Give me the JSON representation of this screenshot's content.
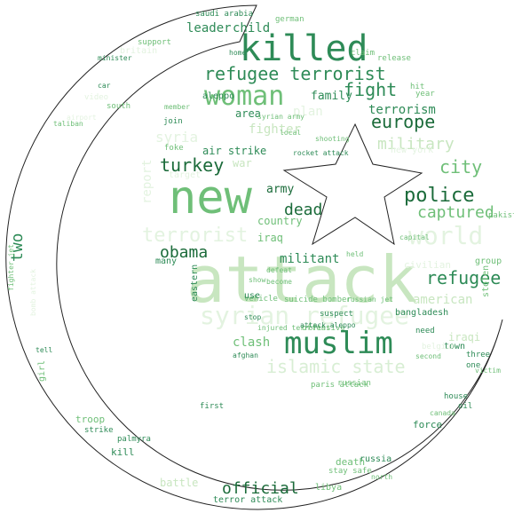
{
  "words": [
    {
      "text": "attack",
      "color": "#c8e6c0"
    },
    {
      "text": "new",
      "color": "#6fbf78"
    },
    {
      "text": "killed",
      "color": "#2e8b57"
    },
    {
      "text": "woman",
      "color": "#6fbf78"
    },
    {
      "text": "muslim",
      "color": "#2e8b57"
    },
    {
      "text": "syrian refugee",
      "color": "#e3f3e0"
    },
    {
      "text": "refugee terrorist",
      "color": "#2e8b57"
    },
    {
      "text": "world",
      "color": "#e3f3e0"
    },
    {
      "text": "police",
      "color": "#1b6b3a"
    },
    {
      "text": "europe",
      "color": "#1b6b3a"
    },
    {
      "text": "turkey",
      "color": "#1b6b3a"
    },
    {
      "text": "city",
      "color": "#6fbf78"
    },
    {
      "text": "terrorist",
      "color": "#e3f3e0"
    },
    {
      "text": "islamic state",
      "color": "#d8eed4"
    },
    {
      "text": "obama",
      "color": "#1b6b3a"
    },
    {
      "text": "military",
      "color": "#c8e6c0"
    },
    {
      "text": "captured",
      "color": "#6fbf78"
    },
    {
      "text": "refugee",
      "color": "#2e8b57"
    },
    {
      "text": "fight",
      "color": "#2e8b57"
    },
    {
      "text": "dead",
      "color": "#1b6b3a"
    },
    {
      "text": "official",
      "color": "#1b6b3a"
    },
    {
      "text": "clash",
      "color": "#6fbf78"
    },
    {
      "text": "two",
      "color": "#2e8b57"
    },
    {
      "text": "child",
      "color": "#2e8b57"
    },
    {
      "text": "leader",
      "color": "#2e8b57"
    },
    {
      "text": "militant",
      "color": "#2e8b57"
    },
    {
      "text": "army",
      "color": "#1b6b3a"
    },
    {
      "text": "family",
      "color": "#2e8b57"
    },
    {
      "text": "fighter",
      "color": "#c8e6c0"
    },
    {
      "text": "terrorism",
      "color": "#2e8b57"
    },
    {
      "text": "american",
      "color": "#c8e6c0"
    },
    {
      "text": "air strike",
      "color": "#2e8b57"
    },
    {
      "text": "iraq",
      "color": "#6fbf78"
    },
    {
      "text": "country",
      "color": "#6fbf78"
    },
    {
      "text": "battle",
      "color": "#c8e6c0"
    },
    {
      "text": "area",
      "color": "#2e8b57"
    },
    {
      "text": "war",
      "color": "#c8e6c0"
    },
    {
      "text": "report",
      "color": "#e3f3e0"
    },
    {
      "text": "plan",
      "color": "#e3f3e0"
    },
    {
      "text": "bangladesh",
      "color": "#2e8b57"
    },
    {
      "text": "iraqi",
      "color": "#c8e6c0"
    },
    {
      "text": "group",
      "color": "#6fbf78"
    },
    {
      "text": "civilian",
      "color": "#e3f3e0"
    },
    {
      "text": "russia",
      "color": "#2e8b57"
    },
    {
      "text": "syria",
      "color": "#e3f3e0"
    },
    {
      "text": "force",
      "color": "#2e8b57"
    },
    {
      "text": "libya",
      "color": "#6fbf78"
    },
    {
      "text": "terror attack",
      "color": "#2e8b57"
    },
    {
      "text": "paris attack",
      "color": "#6fbf78"
    },
    {
      "text": "suspect",
      "color": "#2e8b57"
    },
    {
      "text": "strike",
      "color": "#2e8b57"
    },
    {
      "text": "kill",
      "color": "#2e8b57"
    },
    {
      "text": "palmyra",
      "color": "#2e8b57"
    },
    {
      "text": "troop",
      "color": "#6fbf78"
    },
    {
      "text": "girl",
      "color": "#6fbf78"
    },
    {
      "text": "aleppo",
      "color": "#2e8b57"
    },
    {
      "text": "saudi arabia",
      "color": "#2e8b57"
    },
    {
      "text": "german",
      "color": "#6fbf78"
    },
    {
      "text": "support",
      "color": "#6fbf78"
    },
    {
      "text": "release",
      "color": "#6fbf78"
    },
    {
      "text": "claim",
      "color": "#6fbf78"
    },
    {
      "text": "year",
      "color": "#6fbf78"
    },
    {
      "text": "syrian army",
      "color": "#6fbf78"
    },
    {
      "text": "rocket attack",
      "color": "#2e8b57"
    },
    {
      "text": "join",
      "color": "#2e8b57"
    },
    {
      "text": "foke",
      "color": "#6fbf78"
    },
    {
      "text": "member",
      "color": "#6fbf78"
    },
    {
      "text": "many",
      "color": "#2e8b57"
    },
    {
      "text": "eastern",
      "color": "#2e8b57"
    },
    {
      "text": "vehicle",
      "color": "#6fbf78"
    },
    {
      "text": "suicide bomber",
      "color": "#6fbf78"
    },
    {
      "text": "russian jet",
      "color": "#6fbf78"
    },
    {
      "text": "use",
      "color": "#2e8b57"
    },
    {
      "text": "show",
      "color": "#6fbf78"
    },
    {
      "text": "become",
      "color": "#6fbf78"
    },
    {
      "text": "injured terrorist",
      "color": "#6fbf78"
    },
    {
      "text": "offensive",
      "color": "#6fbf78"
    },
    {
      "text": "need",
      "color": "#2e8b57"
    },
    {
      "text": "town",
      "color": "#2e8b57"
    },
    {
      "text": "one",
      "color": "#2e8b57"
    },
    {
      "text": "three",
      "color": "#2e8b57"
    },
    {
      "text": "stolen",
      "color": "#6fbf78"
    },
    {
      "text": "pakistan",
      "color": "#6fbf78"
    },
    {
      "text": "russian",
      "color": "#6fbf78"
    },
    {
      "text": "second",
      "color": "#6fbf78"
    },
    {
      "text": "death",
      "color": "#6fbf78"
    },
    {
      "text": "north",
      "color": "#6fbf78"
    },
    {
      "text": "stay safe",
      "color": "#6fbf78"
    },
    {
      "text": "home",
      "color": "#2e8b57"
    },
    {
      "text": "car",
      "color": "#2e8b57"
    },
    {
      "text": "first",
      "color": "#2e8b57"
    },
    {
      "text": "afghan",
      "color": "#2e8b57"
    },
    {
      "text": "canada",
      "color": "#6fbf78"
    },
    {
      "text": "house",
      "color": "#2e8b57"
    },
    {
      "text": "oil",
      "color": "#2e8b57"
    },
    {
      "text": "hit",
      "color": "#6fbf78"
    },
    {
      "text": "video",
      "color": "#e3f3e0"
    },
    {
      "text": "south",
      "color": "#6fbf78"
    },
    {
      "text": "taliban",
      "color": "#6fbf78"
    },
    {
      "text": "britain",
      "color": "#e3f3e0"
    },
    {
      "text": "bomb attack",
      "color": "#e3f3e0"
    },
    {
      "text": "fighter jet",
      "color": "#6fbf78"
    },
    {
      "text": "minister",
      "color": "#2e8b57"
    },
    {
      "text": "local",
      "color": "#6fbf78"
    },
    {
      "text": "new york",
      "color": "#e3f3e0"
    },
    {
      "text": "shooting",
      "color": "#6fbf78"
    },
    {
      "text": "belgium",
      "color": "#e3f3e0"
    },
    {
      "text": "tell",
      "color": "#2e8b57"
    },
    {
      "text": "stop",
      "color": "#2e8b57"
    },
    {
      "text": "defeat",
      "color": "#6fbf78"
    },
    {
      "text": "attack aleppo",
      "color": "#2e8b57"
    },
    {
      "text": "held",
      "color": "#6fbf78"
    },
    {
      "text": "target",
      "color": "#e3f3e0"
    },
    {
      "text": "victim",
      "color": "#6fbf78"
    },
    {
      "text": "capital",
      "color": "#6fbf78"
    },
    {
      "text": "airport",
      "color": "#e3f3e0"
    }
  ]
}
